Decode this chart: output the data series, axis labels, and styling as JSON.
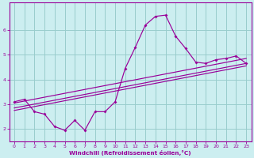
{
  "bg_color": "#cceef0",
  "line_color": "#990099",
  "grid_color": "#99cccc",
  "xlabel": "Windchill (Refroidissement éolien,°C)",
  "xlim": [
    -0.5,
    23.5
  ],
  "ylim": [
    1.5,
    7.1
  ],
  "yticks": [
    2,
    3,
    4,
    5,
    6
  ],
  "xticks": [
    0,
    1,
    2,
    3,
    4,
    5,
    6,
    7,
    8,
    9,
    10,
    11,
    12,
    13,
    14,
    15,
    16,
    17,
    18,
    19,
    20,
    21,
    22,
    23
  ],
  "series1_x": [
    0,
    1,
    2,
    3,
    4,
    5,
    6,
    7,
    8,
    9,
    10,
    11,
    12,
    13,
    14,
    15,
    16,
    17,
    18,
    19,
    20,
    21,
    22,
    23
  ],
  "series1_y": [
    3.1,
    3.2,
    2.7,
    2.6,
    2.1,
    1.95,
    2.35,
    1.95,
    2.7,
    2.7,
    3.1,
    4.45,
    5.3,
    6.2,
    6.55,
    6.6,
    5.75,
    5.25,
    4.7,
    4.65,
    4.8,
    4.85,
    4.95,
    4.65
  ],
  "series2_x": [
    0,
    23
  ],
  "series2_y": [
    3.05,
    4.85
  ],
  "series3_x": [
    0,
    23
  ],
  "series3_y": [
    2.85,
    4.65
  ],
  "series4_x": [
    0,
    23
  ],
  "series4_y": [
    2.75,
    4.55
  ]
}
